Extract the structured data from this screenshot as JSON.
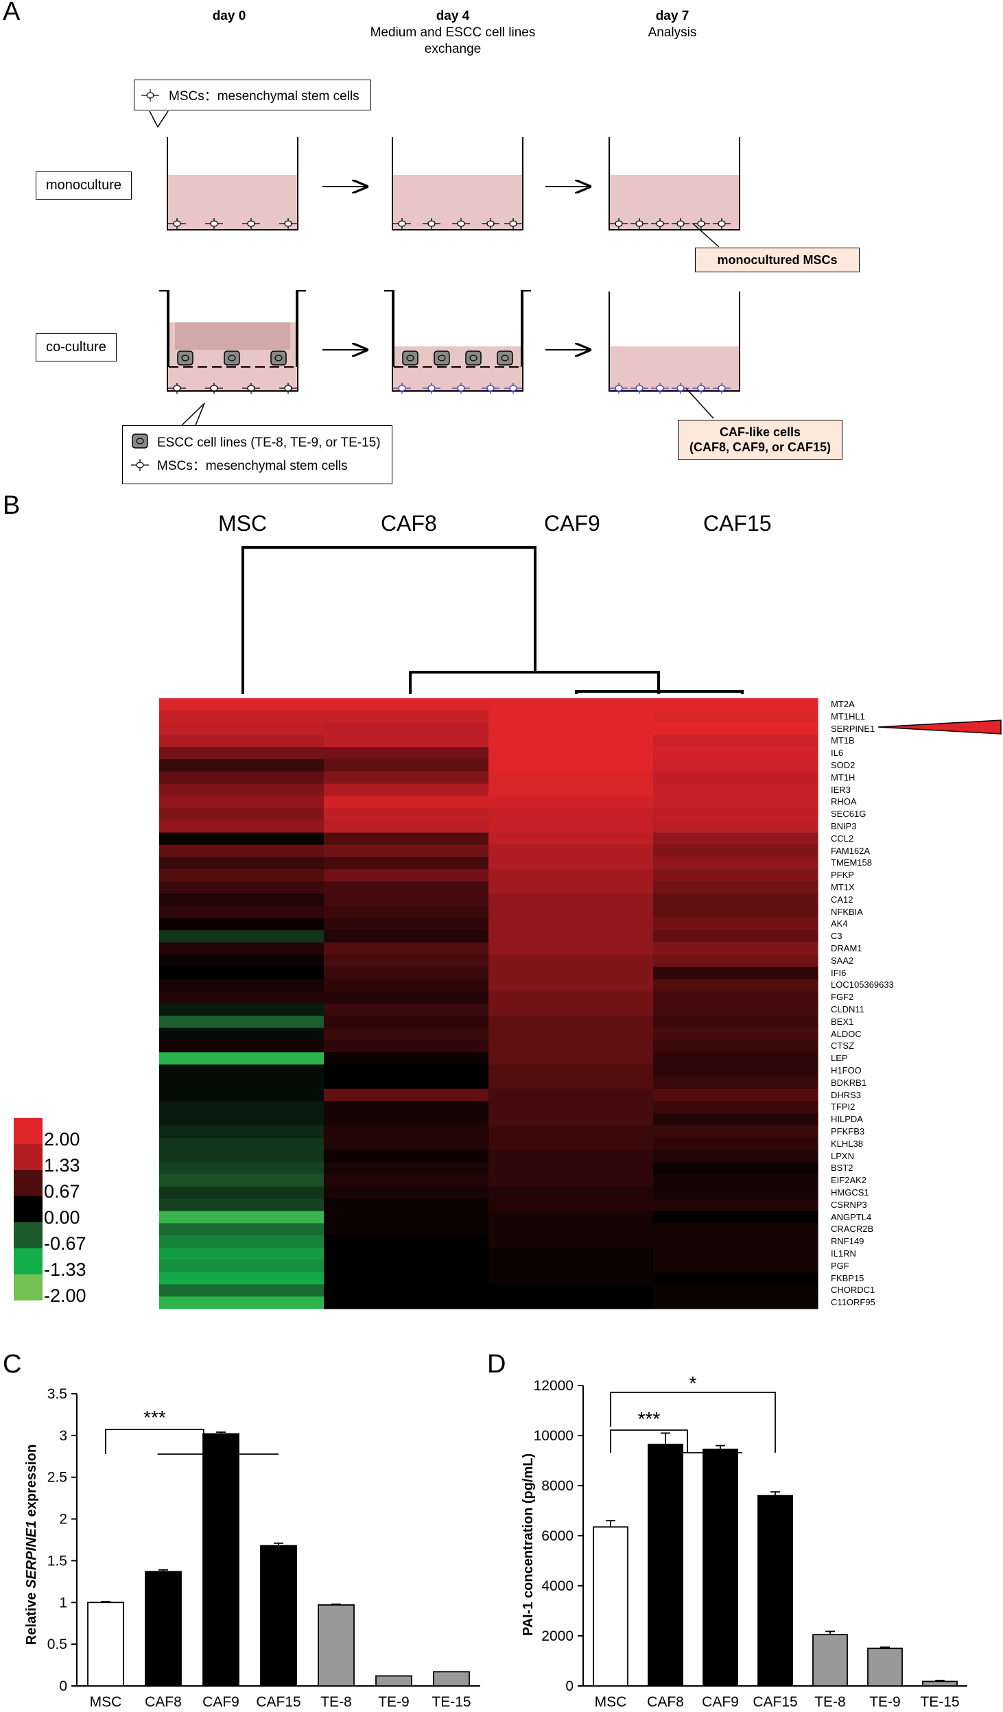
{
  "panel_a": {
    "letter": "A",
    "days": [
      {
        "title": "day 0",
        "subtitle": ""
      },
      {
        "title": "day 4",
        "subtitle": "Medium and ESCC cell lines exchange"
      },
      {
        "title": "day 7",
        "subtitle": "Analysis"
      }
    ],
    "monoculture_label": "monoculture",
    "coculture_label": "co-culture",
    "msc_callout": "MSCs：mesenchymal stem cells",
    "escc_callout": "ESCC cell lines (TE-8, TE-9, or TE-15)",
    "msc_callout2": "MSCs：mesenchymal stem cells",
    "result_mono": "monocultured MSCs",
    "result_co_line1": "CAF-like cells",
    "result_co_line2": "(CAF8, CAF9, or CAF15)",
    "colors": {
      "medium": "#e8c6c6",
      "msc_mono": "#000000",
      "msc_caf": "#3a3ab0",
      "result_fill": "#fde9db"
    }
  },
  "panel_b": {
    "letter": "B",
    "columns": [
      "MSC",
      "CAF8",
      "CAF9",
      "CAF15"
    ],
    "genes": [
      "MT2A",
      "MT1HL1",
      "SERPINE1",
      "MT1B",
      "IL6",
      "SOD2",
      "MT1H",
      "IER3",
      "RHOA",
      "SEC61G",
      "BNIP3",
      "CCL2",
      "FAM162A",
      "TMEM158",
      "PFKP",
      "MT1X",
      "CA12",
      "NFKBIA",
      "AK4",
      "C3",
      "DRAM1",
      "SAA2",
      "IFI6",
      "LOC105369633",
      "FGF2",
      "CLDN11",
      "BEX1",
      "ALDOC",
      "CTSZ",
      "LEP",
      "H1FOO",
      "BDKRB1",
      "DHRS3",
      "TFPI2",
      "HILPDA",
      "PFKFB3",
      "KLHL38",
      "LPXN",
      "BST2",
      "EIF2AK2",
      "HMGCS1",
      "CSRNP3",
      "ANGPTL4",
      "CRACR2B",
      "RNF149",
      "IL1RN",
      "PGF",
      "FKBP15",
      "CHORDC1",
      "C11ORF95"
    ],
    "values": [
      [
        1.9,
        1.9,
        2.0,
        2.0
      ],
      [
        1.6,
        1.6,
        2.0,
        1.9
      ],
      [
        1.5,
        1.4,
        2.0,
        2.0
      ],
      [
        1.3,
        1.5,
        2.0,
        1.7
      ],
      [
        0.9,
        0.9,
        2.0,
        1.8
      ],
      [
        0.5,
        0.8,
        2.0,
        1.7
      ],
      [
        0.8,
        1.0,
        1.9,
        1.5
      ],
      [
        1.0,
        1.3,
        1.9,
        1.6
      ],
      [
        1.1,
        1.8,
        1.8,
        1.6
      ],
      [
        1.0,
        1.5,
        1.6,
        1.5
      ],
      [
        1.1,
        1.4,
        1.6,
        1.4
      ],
      [
        0.1,
        0.7,
        1.5,
        1.1
      ],
      [
        0.8,
        0.9,
        1.3,
        1.0
      ],
      [
        0.5,
        0.6,
        1.3,
        1.1
      ],
      [
        0.7,
        0.9,
        1.2,
        1.0
      ],
      [
        0.5,
        0.6,
        1.2,
        0.9
      ],
      [
        0.3,
        0.6,
        1.1,
        0.8
      ],
      [
        0.4,
        0.5,
        1.1,
        0.8
      ],
      [
        0.1,
        0.4,
        1.1,
        0.9
      ],
      [
        -0.4,
        0.3,
        1.1,
        0.8
      ],
      [
        0.3,
        0.7,
        1.1,
        1.0
      ],
      [
        0.1,
        0.6,
        1.0,
        0.9
      ],
      [
        0.0,
        0.5,
        1.0,
        0.4
      ],
      [
        0.2,
        0.4,
        1.0,
        0.7
      ],
      [
        0.3,
        0.3,
        0.9,
        0.6
      ],
      [
        -0.2,
        0.5,
        0.9,
        0.6
      ],
      [
        -0.7,
        0.4,
        0.8,
        0.5
      ],
      [
        -0.1,
        0.5,
        0.8,
        0.6
      ],
      [
        0.2,
        0.4,
        0.8,
        0.5
      ],
      [
        -1.5,
        0.1,
        0.8,
        0.4
      ],
      [
        -0.1,
        0.0,
        0.7,
        0.4
      ],
      [
        -0.1,
        0.0,
        0.7,
        0.5
      ],
      [
        -0.1,
        0.8,
        0.6,
        0.7
      ],
      [
        -0.2,
        0.2,
        0.6,
        0.5
      ],
      [
        -0.2,
        0.2,
        0.6,
        0.3
      ],
      [
        -0.3,
        0.3,
        0.5,
        0.5
      ],
      [
        -0.4,
        0.3,
        0.5,
        0.4
      ],
      [
        -0.4,
        0.1,
        0.4,
        0.3
      ],
      [
        -0.5,
        0.2,
        0.4,
        0.1
      ],
      [
        -0.6,
        0.3,
        0.4,
        0.2
      ],
      [
        -0.4,
        0.2,
        0.3,
        0.2
      ],
      [
        -0.5,
        0.1,
        0.3,
        0.3
      ],
      [
        -1.6,
        0.1,
        0.2,
        0.0
      ],
      [
        -0.8,
        0.1,
        0.2,
        0.2
      ],
      [
        -1.0,
        0.0,
        0.2,
        0.2
      ],
      [
        -1.2,
        0.0,
        0.1,
        0.2
      ],
      [
        -1.1,
        0.0,
        0.1,
        0.2
      ],
      [
        -1.3,
        0.0,
        0.1,
        0.0
      ],
      [
        -0.8,
        0.0,
        0.0,
        0.1
      ],
      [
        -1.5,
        0.0,
        0.0,
        0.1
      ]
    ],
    "legend": [
      "2.00",
      "1.33",
      "0.67",
      "0.00",
      "-0.67",
      "-1.33",
      "-2.00"
    ],
    "legend_colors": [
      "#e0262a",
      "#b51d25",
      "#4e0c0e",
      "#000000",
      "#1c5a2c",
      "#13ae4a",
      "#74c050"
    ],
    "highlight_gene": "SERPINE1",
    "highlight_color": "#e0262a"
  },
  "chart_data": [
    {
      "type": "bar",
      "panel": "C",
      "categories": [
        "MSC",
        "CAF8",
        "CAF9",
        "CAF15",
        "TE-8",
        "TE-9",
        "TE-15"
      ],
      "values": [
        1.0,
        1.37,
        3.02,
        1.68,
        0.97,
        0.12,
        0.17
      ],
      "errors": [
        0.01,
        0.02,
        0.02,
        0.03,
        0.01,
        0.0,
        0.0
      ],
      "bar_fills": [
        "#ffffff",
        "#000000",
        "#000000",
        "#000000",
        "#999999",
        "#999999",
        "#999999"
      ],
      "ylabel_prefix": "Relative ",
      "ylabel_italic": "SERPINE1",
      "ylabel_suffix": " expression",
      "ylim": [
        0,
        3.5
      ],
      "yticks": [
        "0",
        "0.5",
        "1",
        "1.5",
        "2",
        "2.5",
        "3",
        "3.5"
      ],
      "significance": [
        "***"
      ]
    },
    {
      "type": "bar",
      "panel": "D",
      "categories": [
        "MSC",
        "CAF8",
        "CAF9",
        "CAF15",
        "TE-8",
        "TE-9",
        "TE-15"
      ],
      "values": [
        6350,
        9650,
        9450,
        7600,
        2050,
        1500,
        180
      ],
      "errors": [
        250,
        450,
        150,
        150,
        130,
        50,
        40
      ],
      "bar_fills": [
        "#ffffff",
        "#000000",
        "#000000",
        "#000000",
        "#999999",
        "#999999",
        "#999999"
      ],
      "ylabel": "PAI-1 concentration (pg/mL)",
      "ylim": [
        0,
        12000
      ],
      "yticks": [
        "0",
        "2000",
        "4000",
        "6000",
        "8000",
        "10000",
        "12000"
      ],
      "significance": [
        "***",
        "*"
      ]
    }
  ]
}
